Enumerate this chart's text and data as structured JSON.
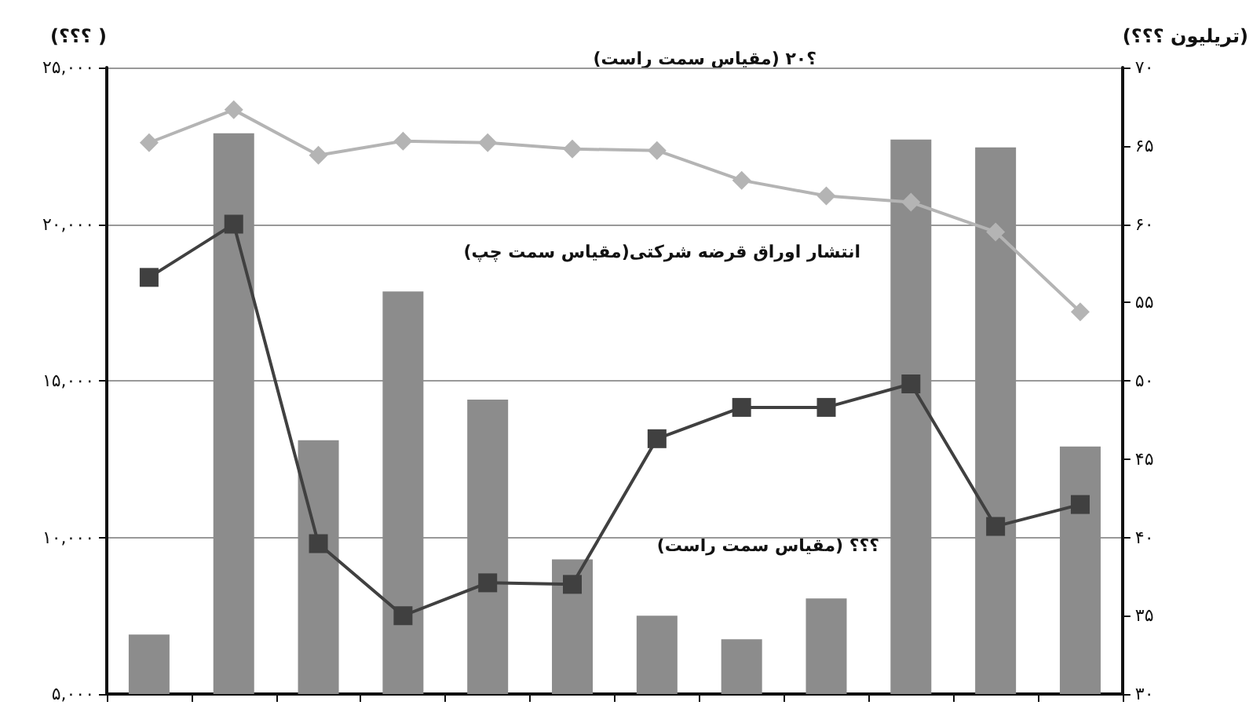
{
  "chart_data": {
    "type": "bar",
    "ylabel": "(؟؟؟ )",
    "y2label": "(تریلیون ؟؟؟)",
    "categories": [
      null,
      null,
      null,
      null,
      null,
      null,
      null,
      null,
      null,
      null,
      null,
      null
    ],
    "series": [
      {
        "axis": "y2",
        "color": "#8c8c8c",
        "values": [
          33.8,
          65.8,
          46.2,
          55.7,
          48.8,
          38.6,
          35.0,
          33.5,
          36.1,
          65.4,
          64.9,
          45.8
        ]
      },
      {
        "type": "line",
        "axis": "y",
        "color": "#404040",
        "marker": "square",
        "values": [
          18300,
          20000,
          9800,
          7500,
          8550,
          8500,
          13150,
          14150,
          14150,
          14900,
          10350,
          11050
        ]
      },
      {
        "type": "line",
        "axis": "y2",
        "color": "#b4b4b4",
        "marker": "diamond",
        "values": [
          65.2,
          67.3,
          64.4,
          65.3,
          65.2,
          64.8,
          64.7,
          62.8,
          61.8,
          61.4,
          59.5,
          54.4
        ]
      }
    ],
    "ylim": [
      5000,
      25000
    ],
    "yticks": [
      {
        "value": 5000,
        "label": "۵,۰۰۰"
      },
      {
        "value": 10000,
        "label": "۱۰,۰۰۰"
      },
      {
        "value": 15000,
        "label": "۱۵,۰۰۰"
      },
      {
        "value": 20000,
        "label": "۲۰,۰۰۰"
      },
      {
        "value": 25000,
        "label": "۲۵,۰۰۰"
      }
    ],
    "y2lim": [
      30,
      70
    ],
    "y2ticks": [
      {
        "value": 30,
        "label": "۳۰"
      },
      {
        "value": 35,
        "label": "۳۵"
      },
      {
        "value": 40,
        "label": "۴۰"
      },
      {
        "value": 45,
        "label": "۴۵"
      },
      {
        "value": 50,
        "label": "۵۰"
      },
      {
        "value": 55,
        "label": "۵۵"
      },
      {
        "value": 60,
        "label": "۶۰"
      },
      {
        "value": 65,
        "label": "۶۵"
      },
      {
        "value": 70,
        "label": "۷۰"
      }
    ],
    "grid": "y",
    "annotations": [
      "(مقیاس سمت راست) ؟۲۰",
      "انتشار اوراق قرضه شرکتی(مقیاس سمت چپ)",
      "(مقیاس سمت راست) ؟؟؟"
    ]
  }
}
